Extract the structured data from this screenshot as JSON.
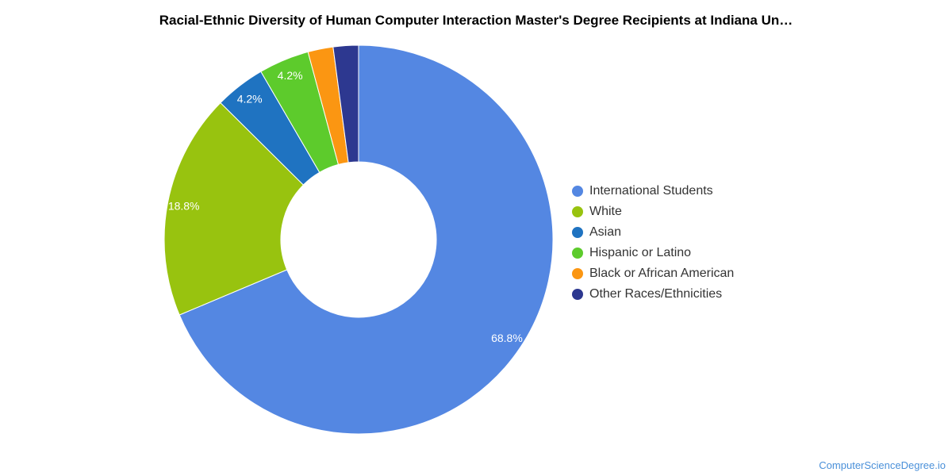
{
  "chart_data": {
    "type": "pie",
    "title": "Racial-Ethnic Diversity of Human Computer Interaction Master's Degree Recipients at Indiana Un…",
    "categories": [
      "International Students",
      "White",
      "Asian",
      "Hispanic or Latino",
      "Black or African American",
      "Other Races/Ethnicities"
    ],
    "values": [
      68.8,
      18.8,
      4.2,
      4.2,
      2.1,
      2.1
    ],
    "data_labels": [
      "68.8%",
      "18.8%",
      "4.2%",
      "4.2%",
      "",
      ""
    ],
    "colors": [
      "#5487e2",
      "#98c30f",
      "#1f73c1",
      "#5dcb2c",
      "#fb9612",
      "#2d3890"
    ],
    "donut": true,
    "legend_position": "right"
  },
  "footer": {
    "source": "ComputerScienceDegree.io"
  }
}
